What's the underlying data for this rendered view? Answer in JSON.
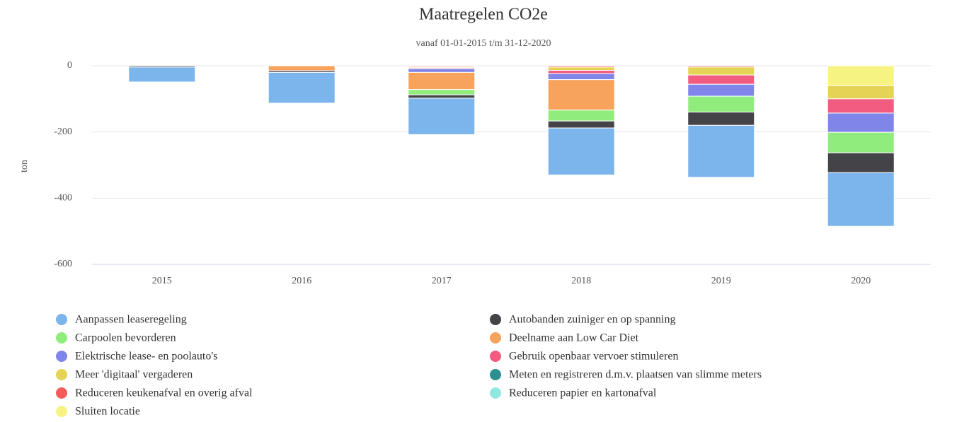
{
  "chart_data": {
    "type": "bar",
    "stacked": true,
    "title": "Maatregelen CO2e",
    "subtitle": "vanaf 01-01-2015 t/m 31-12-2020",
    "y_label": "ton",
    "categories": [
      "2015",
      "2016",
      "2017",
      "2018",
      "2019",
      "2020"
    ],
    "ylim": [
      -600,
      0
    ],
    "yticks": [
      -600,
      -400,
      -200,
      0
    ],
    "grid": true,
    "series": [
      {
        "name": "Aanpassen leaseregeling",
        "color": "#7cb5ec",
        "values": [
          -45,
          -93,
          -110,
          -142,
          -157,
          -162
        ]
      },
      {
        "name": "Autobanden zuiniger en op spanning",
        "color": "#434348",
        "values": [
          -4,
          -5,
          -10,
          -21,
          -40,
          -60
        ]
      },
      {
        "name": "Carpoolen bevorderen",
        "color": "#90ed7d",
        "values": [
          0,
          0,
          -16,
          -33,
          -48,
          -62
        ]
      },
      {
        "name": "Deelname aan Low Car Diet",
        "color": "#f7a35c",
        "values": [
          0,
          -15,
          -52,
          -92,
          0,
          0
        ]
      },
      {
        "name": "Elektrische lease- en poolauto's",
        "color": "#8085e9",
        "values": [
          0,
          0,
          -11,
          -18,
          -36,
          -58
        ]
      },
      {
        "name": "Gebruik openbaar vervoer stimuleren",
        "color": "#f15c80",
        "values": [
          0,
          0,
          -3,
          -10,
          -28,
          -43
        ]
      },
      {
        "name": "Meer 'digitaal' vergaderen",
        "color": "#e4d354",
        "values": [
          0,
          0,
          -3,
          -10,
          -24,
          -40
        ]
      },
      {
        "name": "Meten en registreren d.m.v. plaatsen van slimme meters",
        "color": "#2b908f",
        "values": [
          0,
          0,
          0,
          0,
          0,
          0
        ]
      },
      {
        "name": "Reduceren keukenafval en overig afval",
        "color": "#f45b5b",
        "values": [
          0,
          0,
          -3,
          -4,
          -4,
          0
        ]
      },
      {
        "name": "Reduceren papier en kartonafval",
        "color": "#91e8e1",
        "values": [
          0,
          0,
          0,
          0,
          0,
          0
        ]
      },
      {
        "name": "Sluiten locatie",
        "color": "#f7f383",
        "values": [
          0,
          0,
          0,
          0,
          0,
          -60
        ]
      }
    ]
  }
}
